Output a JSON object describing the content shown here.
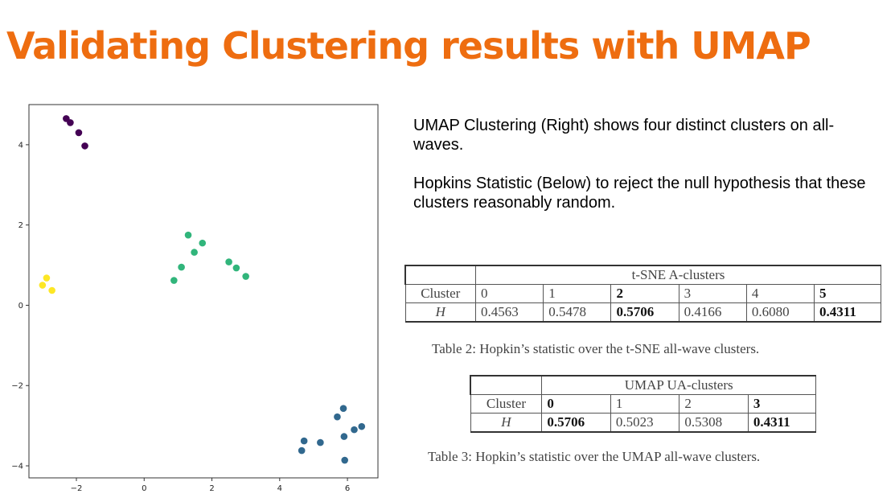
{
  "title": "Validating Clustering results with UMAP",
  "description": [
    "UMAP Clustering (Right) shows four distinct clusters on all-waves.",
    "Hopkins Statistic (Below) to reject the null hypothesis that these clusters reasonably random."
  ],
  "chart_data": {
    "type": "scatter",
    "title": "",
    "xlabel": "",
    "ylabel": "",
    "xlim": [
      -3.4,
      6.9
    ],
    "ylim": [
      -4.3,
      5.0
    ],
    "xticks": [
      -2,
      0,
      2,
      4,
      6
    ],
    "yticks": [
      -4,
      -2,
      0,
      2,
      4
    ],
    "xtick_labels": [
      "−2",
      "0",
      "2",
      "4",
      "6"
    ],
    "ytick_labels": [
      "−4",
      "−2",
      "0",
      "2",
      "4"
    ],
    "grid": false,
    "series": [
      {
        "color": "#440154",
        "points": [
          [
            -2.3,
            4.65
          ],
          [
            -2.18,
            4.55
          ],
          [
            -1.93,
            4.3
          ],
          [
            -1.75,
            3.97
          ]
        ]
      },
      {
        "color": "#31b57b",
        "points": [
          [
            1.3,
            1.75
          ],
          [
            1.72,
            1.55
          ],
          [
            1.48,
            1.32
          ],
          [
            1.1,
            0.95
          ],
          [
            0.88,
            0.62
          ],
          [
            2.5,
            1.08
          ],
          [
            2.72,
            0.93
          ],
          [
            3.0,
            0.72
          ]
        ]
      },
      {
        "color": "#fde725",
        "points": [
          [
            -3.0,
            0.5
          ],
          [
            -2.88,
            0.68
          ],
          [
            -2.72,
            0.37
          ]
        ]
      },
      {
        "color": "#31688e",
        "points": [
          [
            5.88,
            -2.57
          ],
          [
            5.7,
            -2.78
          ],
          [
            6.2,
            -3.1
          ],
          [
            6.42,
            -3.02
          ],
          [
            5.9,
            -3.27
          ],
          [
            4.72,
            -3.38
          ],
          [
            5.2,
            -3.42
          ],
          [
            4.65,
            -3.62
          ],
          [
            5.92,
            -3.86
          ]
        ]
      }
    ]
  },
  "table2": {
    "group_header": "t-SNE A-clusters",
    "cluster_label": "Cluster",
    "h_label": "H",
    "clusters": [
      "0",
      "1",
      "2",
      "3",
      "4",
      "5"
    ],
    "values": [
      "0.4563",
      "0.5478",
      "0.5706",
      "0.4166",
      "0.6080",
      "0.4311"
    ],
    "caption": "Table 2: Hopkin’s statistic over the t-SNE all-wave clusters."
  },
  "table3": {
    "group_header": "UMAP UA-clusters",
    "cluster_label": "Cluster",
    "h_label": "H",
    "clusters": [
      "0",
      "1",
      "2",
      "3"
    ],
    "values": [
      "0.5706",
      "0.5023",
      "0.5308",
      "0.4311"
    ],
    "caption": "Table 3: Hopkin’s statistic over the UMAP all-wave clusters."
  }
}
